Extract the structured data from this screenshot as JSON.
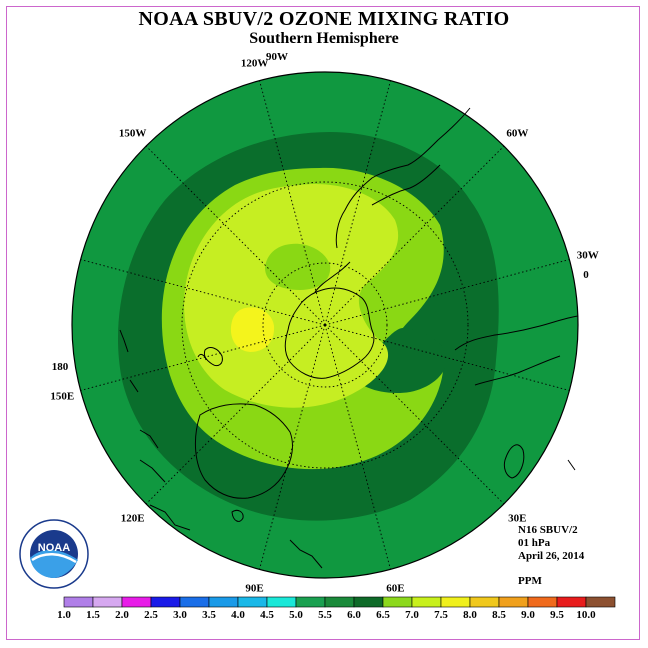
{
  "title": "NOAA SBUV/2 OZONE MIXING RATIO",
  "subtitle": "Southern Hemisphere",
  "longitude_labels": [
    "90W",
    "60W",
    "30W",
    "0",
    "30E",
    "60E",
    "90E",
    "120E",
    "150E",
    "180",
    "150W",
    "120W"
  ],
  "info": {
    "satellite": "N16 SBUV/2",
    "level": "01 hPa",
    "date": "April 26, 2014",
    "units": "PPM"
  },
  "logo": {
    "text": "NOAA",
    "ring_text": "NATIONAL OCEANIC AND ATMOSPHERIC ADMINISTRATION · U.S. DEPARTMENT OF COMMERCE"
  },
  "colorbar": {
    "ticks": [
      "1.0",
      "1.5",
      "2.0",
      "2.5",
      "3.0",
      "3.5",
      "4.0",
      "4.5",
      "5.0",
      "5.5",
      "6.0",
      "6.5",
      "7.0",
      "7.5",
      "8.0",
      "8.5",
      "9.0",
      "9.5",
      "10.0"
    ],
    "colors": [
      "#b07fe8",
      "#d6a8f0",
      "#e81ce8",
      "#1a1ae8",
      "#1a6ee8",
      "#1a9ae8",
      "#1ab8e8",
      "#1ae8d8",
      "#1aa050",
      "#1a8a3a",
      "#0e6a28",
      "#8cd81c",
      "#c8f01c",
      "#f0f01c",
      "#f0c81c",
      "#f0a01c",
      "#f06a1c",
      "#e81c1c",
      "#8c5030"
    ]
  },
  "map_colors": {
    "c55": "#109840",
    "c60": "#0a6e2c",
    "c65": "#8ad814",
    "c70": "#c6ee22",
    "c75": "#f4f41c"
  }
}
